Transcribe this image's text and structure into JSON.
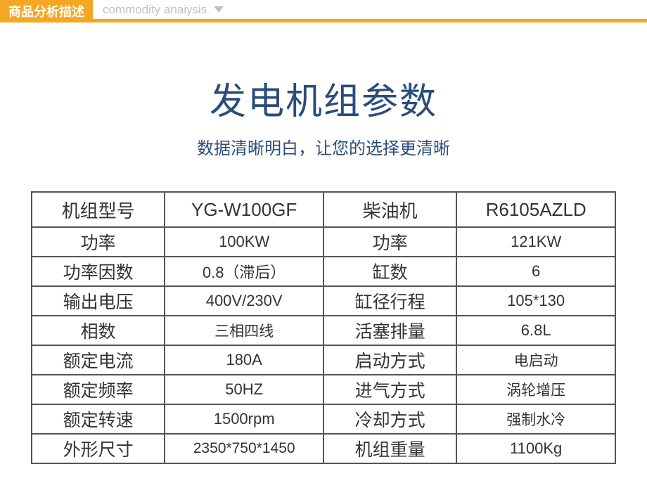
{
  "header": {
    "label_cn": "商品分析描述",
    "label_en": "commodity anaiysis"
  },
  "title": {
    "main": "发电机组参数",
    "sub": "数据清晰明白，让您的选择更清晰"
  },
  "colors": {
    "accent": "#f5a623",
    "title_color": "#2a4d7a",
    "border": "#555555",
    "text": "#333333",
    "sub_label": "#c0c0c0"
  },
  "table": {
    "rows": [
      {
        "l1": "机组型号",
        "v1": "YG-W100GF",
        "l2": "柴油机",
        "v2": "R6105AZLD"
      },
      {
        "l1": "功率",
        "v1": "100KW",
        "l2": "功率",
        "v2": "121KW"
      },
      {
        "l1": "功率因数",
        "v1": "0.8（滞后）",
        "l2": "缸数",
        "v2": "6"
      },
      {
        "l1": "输出电压",
        "v1": "400V/230V",
        "l2": "缸径行程",
        "v2": "105*130"
      },
      {
        "l1": "相数",
        "v1": "三相四线",
        "l2": "活塞排量",
        "v2": "6.8L"
      },
      {
        "l1": "额定电流",
        "v1": "180A",
        "l2": "启动方式",
        "v2": "电启动"
      },
      {
        "l1": "额定频率",
        "v1": "50HZ",
        "l2": "进气方式",
        "v2": "涡轮增压"
      },
      {
        "l1": "额定转速",
        "v1": "1500rpm",
        "l2": "冷却方式",
        "v2": "强制水冷"
      },
      {
        "l1": "外形尺寸",
        "v1": "2350*750*1450",
        "l2": "机组重量",
        "v2": "1100Kg"
      }
    ]
  }
}
